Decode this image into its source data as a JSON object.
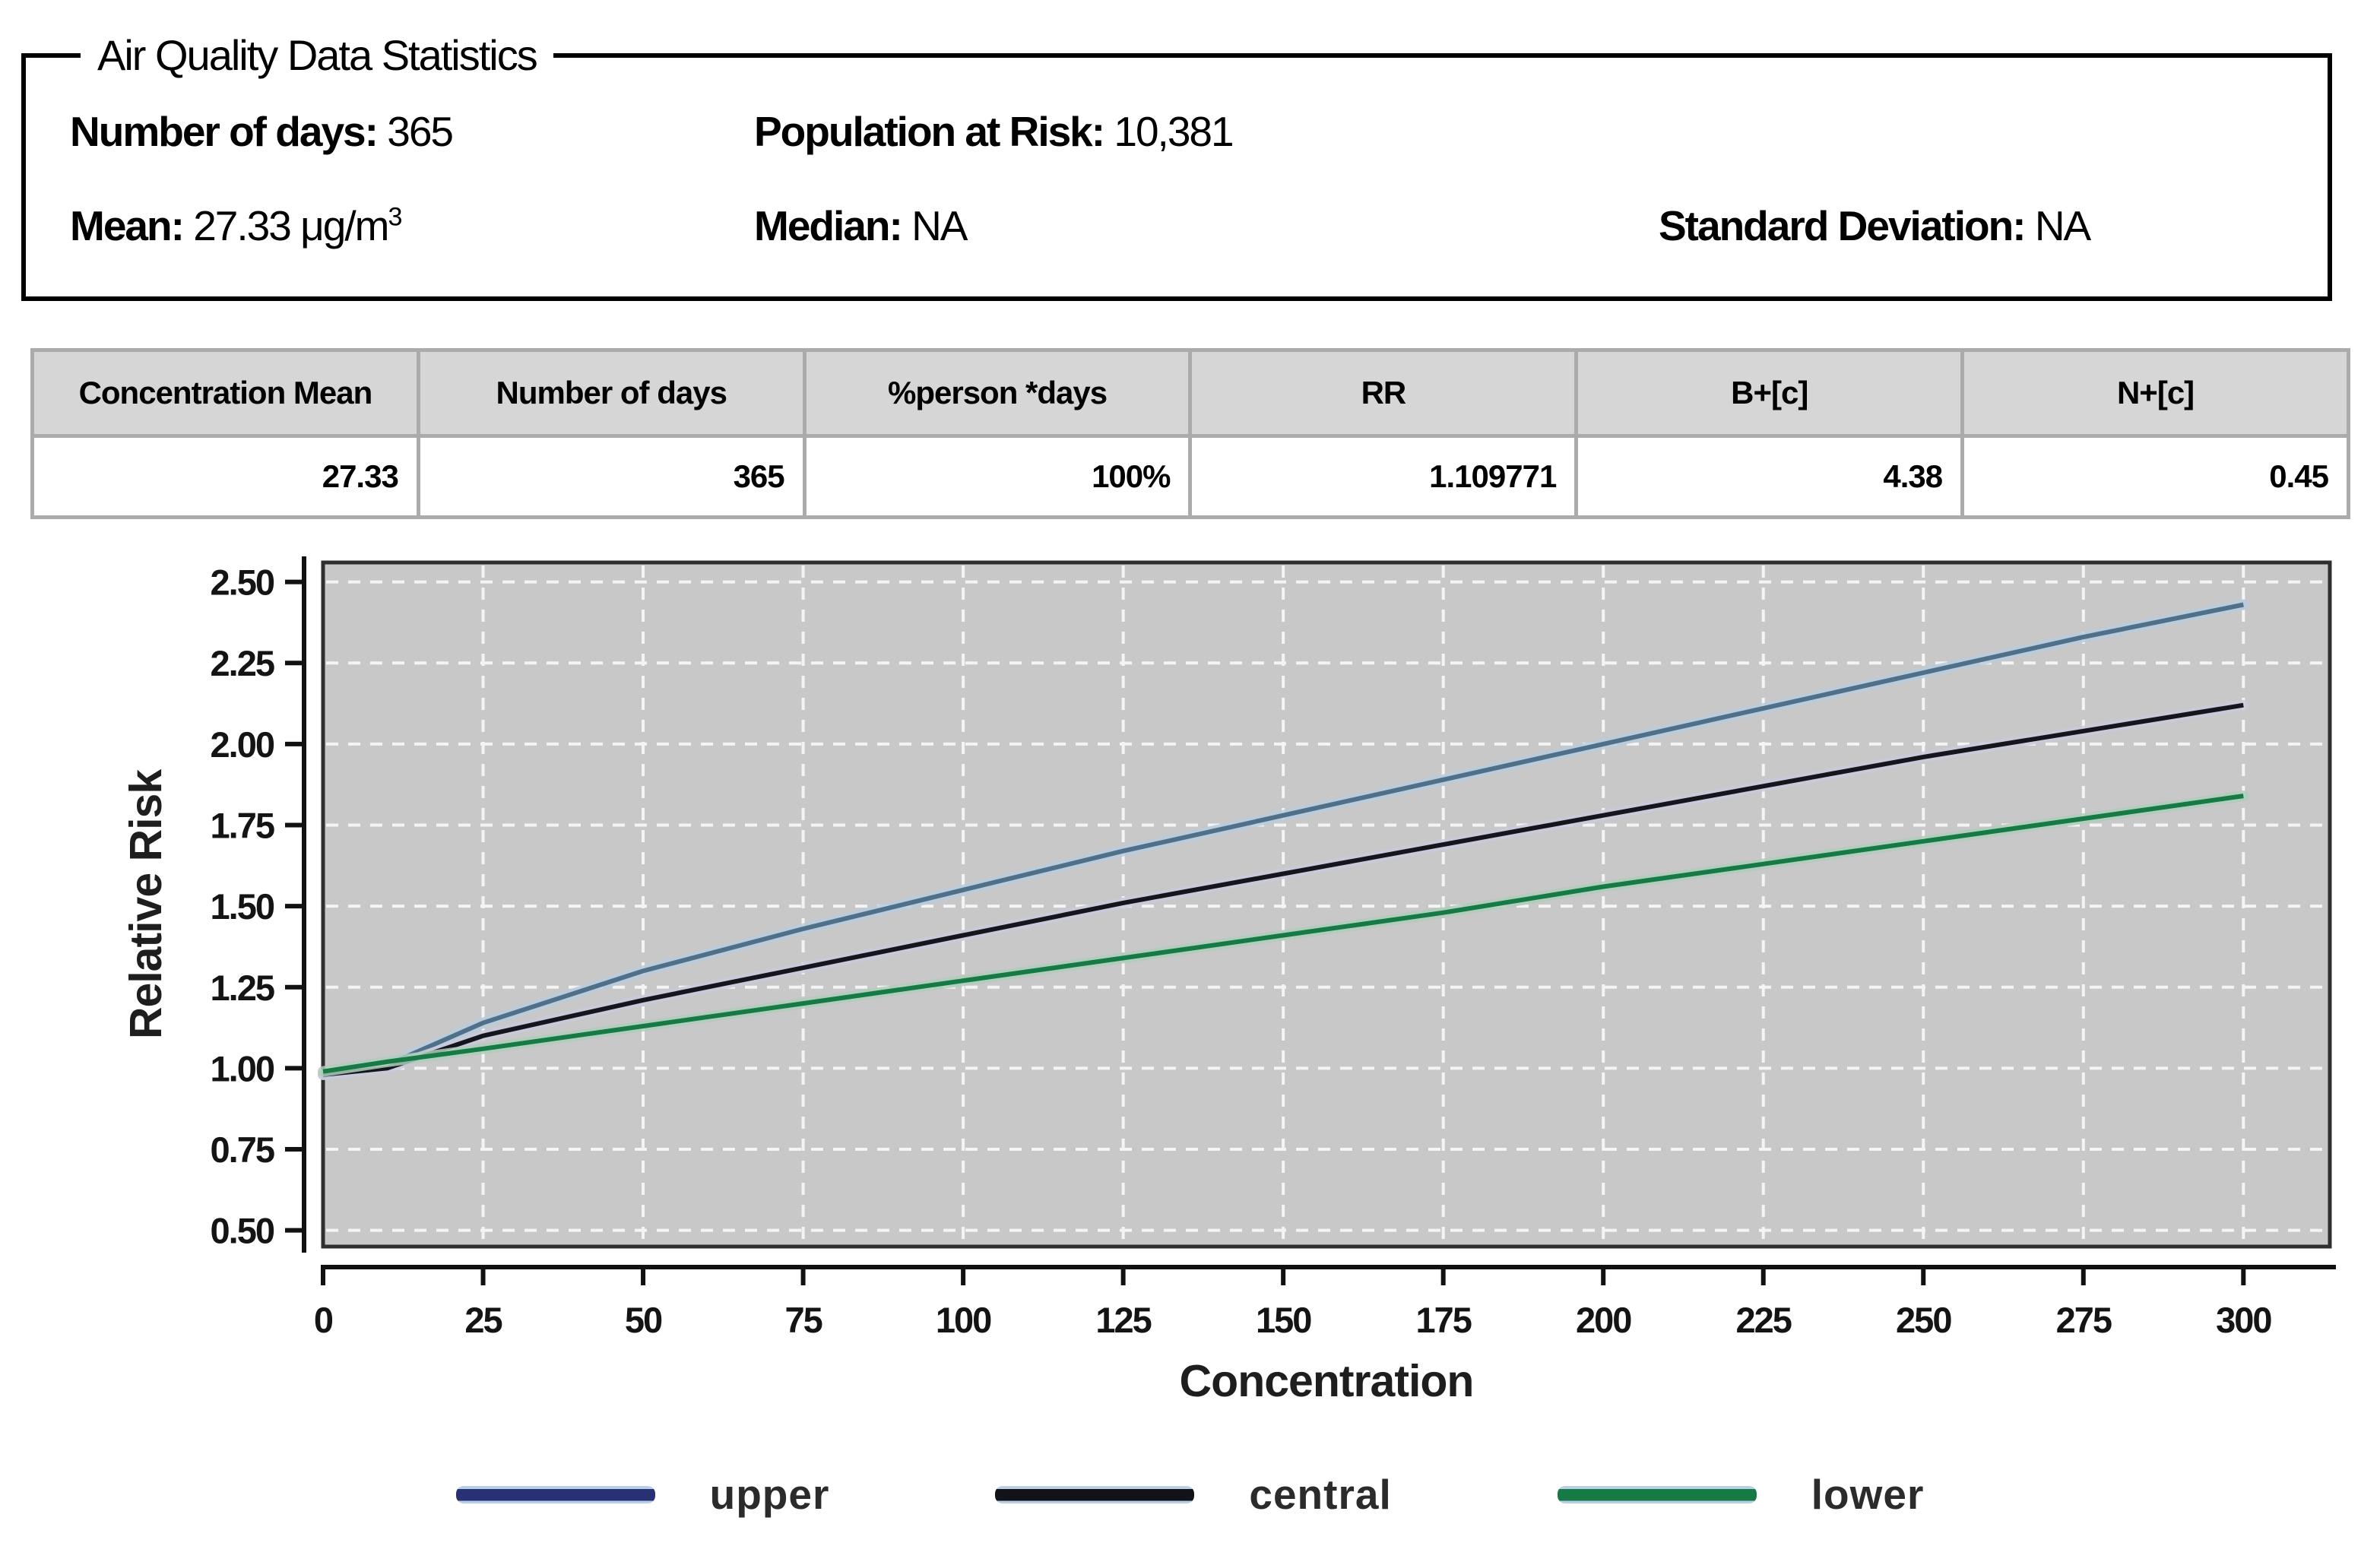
{
  "panel": {
    "title": "Air Quality Data Statistics",
    "fields": [
      {
        "label": "Number of days:",
        "value": "365"
      },
      {
        "label": "Population at Risk:",
        "value": "10,381"
      },
      {
        "label": "Mean:",
        "value": "27.33",
        "unit": "μg/m",
        "unit_sup": "3"
      },
      {
        "label": "Median:",
        "value": "NA"
      },
      {
        "label": "Standard Deviation:",
        "value": "NA"
      }
    ]
  },
  "table": {
    "columns": [
      "Concentration Mean",
      "Number of days",
      "%person *days",
      "RR",
      "B+[c]",
      "N+[c]"
    ],
    "row": [
      "27.33",
      "365",
      "100%",
      "1.109771",
      "4.38",
      "0.45"
    ]
  },
  "chart_data": {
    "type": "line",
    "title": "",
    "xlabel": "Concentration",
    "ylabel": "Relative Risk",
    "x": [
      0,
      10,
      25,
      50,
      75,
      100,
      125,
      150,
      175,
      200,
      225,
      250,
      275,
      300
    ],
    "series": [
      {
        "name": "upper",
        "color": "#50708a",
        "halo": "#b7cdde",
        "values": [
          0.98,
          1.01,
          1.14,
          1.3,
          1.43,
          1.55,
          1.67,
          1.78,
          1.89,
          2.0,
          2.11,
          2.22,
          2.33,
          2.43
        ]
      },
      {
        "name": "central",
        "color": "#15161d",
        "halo": "#c9c9dd",
        "values": [
          0.98,
          1.0,
          1.1,
          1.21,
          1.31,
          1.41,
          1.51,
          1.6,
          1.69,
          1.78,
          1.87,
          1.96,
          2.04,
          2.12
        ]
      },
      {
        "name": "lower",
        "color": "#157a43",
        "halo": "#aecdbb",
        "values": [
          0.99,
          1.02,
          1.06,
          1.13,
          1.2,
          1.27,
          1.34,
          1.41,
          1.48,
          1.56,
          1.63,
          1.7,
          1.77,
          1.84
        ]
      }
    ],
    "xticks": [
      0,
      25,
      50,
      75,
      100,
      125,
      150,
      175,
      200,
      225,
      250,
      275,
      300
    ],
    "yticks": [
      0.5,
      0.75,
      1.0,
      1.25,
      1.5,
      1.75,
      2.0,
      2.25,
      2.5
    ],
    "xlim": [
      0,
      313.5
    ],
    "ylim": [
      0.45,
      2.56
    ],
    "grid": true,
    "plot_bg": "#c8c8c8",
    "plot_border": "#2f2f2f",
    "grid_color": "#f4f4f4",
    "axis_color": "#111111",
    "legend_position": "bottom",
    "legend_edge": "#b9cfe6",
    "legend": [
      {
        "label": "upper",
        "core": "#283173"
      },
      {
        "label": "central",
        "core": "#121318"
      },
      {
        "label": "lower",
        "core": "#157a43"
      }
    ]
  }
}
